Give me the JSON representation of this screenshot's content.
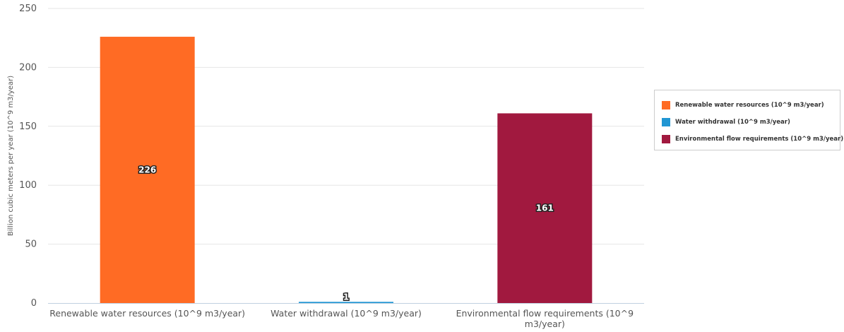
{
  "chart_data": {
    "type": "bar",
    "ylabel": "Billion cubic meters per year (10^9 m3/year)",
    "ylim": [
      0,
      250
    ],
    "yticks": [
      0,
      50,
      100,
      150,
      200,
      250
    ],
    "grid": true,
    "legend_position": "right",
    "categories": [
      "Renewable water resources (10^9 m3/year)",
      "Water withdrawal (10^9 m3/year)",
      "Environmental flow requirements (10^9 m3/year)"
    ],
    "category_lines": [
      [
        "Renewable water resources (10^9 m3/year)"
      ],
      [
        "Water withdrawal (10^9 m3/year)"
      ],
      [
        "Environmental flow requirements (10^9",
        "m3/year)"
      ]
    ],
    "values": [
      226,
      1,
      161
    ],
    "data_labels": [
      "226",
      "1",
      "161"
    ],
    "colors": [
      "#ff6b24",
      "#2196d3",
      "#a1193f"
    ]
  },
  "legend": {
    "items": [
      {
        "label": "Renewable water resources (10^9 m3/year)",
        "color": "#ff6b24"
      },
      {
        "label": "Water withdrawal (10^9 m3/year)",
        "color": "#2196d3"
      },
      {
        "label": "Environmental flow requirements (10^9 m3/year)",
        "color": "#a1193f"
      }
    ]
  }
}
